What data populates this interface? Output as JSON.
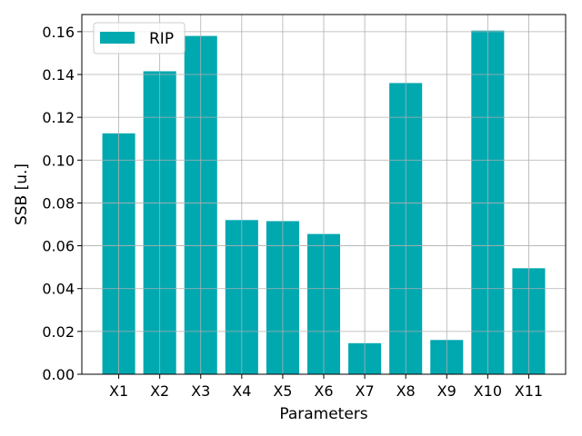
{
  "chart_data": {
    "type": "bar",
    "categories": [
      "X1",
      "X2",
      "X3",
      "X4",
      "X5",
      "X6",
      "X7",
      "X8",
      "X9",
      "X10",
      "X11"
    ],
    "series": [
      {
        "name": "RIP",
        "values": [
          0.1125,
          0.1415,
          0.158,
          0.072,
          0.0715,
          0.0655,
          0.0145,
          0.136,
          0.016,
          0.1605,
          0.0495
        ],
        "color": "#00a8b0"
      }
    ],
    "xlabel": "Parameters",
    "ylabel": "SSB [u.]",
    "ylim": [
      0,
      0.168
    ],
    "yticks": [
      0.0,
      0.02,
      0.04,
      0.06,
      0.08,
      0.1,
      0.12,
      0.14,
      0.16
    ],
    "ytick_labels": [
      "0.00",
      "0.02",
      "0.04",
      "0.06",
      "0.08",
      "0.10",
      "0.12",
      "0.14",
      "0.16"
    ],
    "grid": true,
    "legend": "top-left"
  }
}
